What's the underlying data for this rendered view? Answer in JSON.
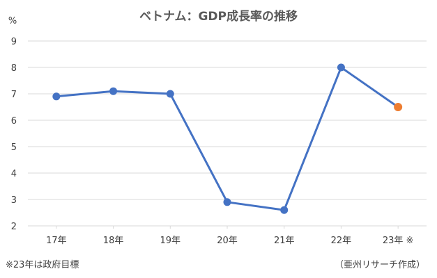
{
  "chart_data": {
    "type": "line",
    "title": "ベトナム：GDP成長率の推移",
    "ylabel": "%",
    "ylim": [
      2,
      9
    ],
    "y_ticks": [
      2,
      3,
      4,
      5,
      6,
      7,
      8,
      9
    ],
    "categories": [
      "17年",
      "18年",
      "19年",
      "20年",
      "21年",
      "22年",
      "23年 ※"
    ],
    "series": [
      {
        "values": [
          6.9,
          7.1,
          7.0,
          2.9,
          2.6,
          8.0,
          6.5
        ]
      }
    ],
    "highlight_index": 6,
    "grid": true
  },
  "footnote": "※23年は政府目標",
  "source": "（亜州リサーチ作成）",
  "colors": {
    "line": "#4472C4",
    "highlight": "#ED7D31",
    "grid": "#D9D9D9",
    "text": "#404040"
  }
}
